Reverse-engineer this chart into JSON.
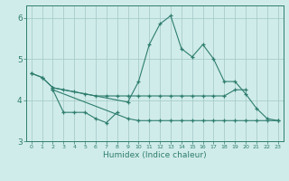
{
  "x": [
    0,
    1,
    2,
    3,
    4,
    5,
    6,
    7,
    8,
    9,
    10,
    11,
    12,
    13,
    14,
    15,
    16,
    17,
    18,
    19,
    20,
    21,
    22,
    23
  ],
  "line1": [
    4.65,
    4.55,
    4.3,
    null,
    null,
    null,
    null,
    null,
    null,
    3.95,
    4.45,
    5.35,
    5.85,
    6.05,
    5.25,
    5.05,
    5.35,
    5.0,
    4.45,
    4.45,
    4.15,
    3.8,
    3.55,
    3.5
  ],
  "line2": [
    null,
    null,
    4.25,
    3.7,
    3.7,
    3.7,
    3.55,
    3.45,
    3.7,
    null,
    null,
    null,
    null,
    null,
    null,
    null,
    null,
    null,
    null,
    null,
    null,
    null,
    null,
    null
  ],
  "line3": [
    null,
    null,
    4.25,
    null,
    null,
    null,
    null,
    null,
    null,
    3.55,
    3.5,
    3.5,
    3.5,
    3.5,
    3.5,
    3.5,
    3.5,
    3.5,
    3.5,
    3.5,
    3.5,
    3.5,
    3.5,
    3.5
  ],
  "line4": [
    4.65,
    4.55,
    4.3,
    4.25,
    4.2,
    4.15,
    4.1,
    4.1,
    4.1,
    4.1,
    4.1,
    4.1,
    4.1,
    4.1,
    4.1,
    4.1,
    4.1,
    4.1,
    4.1,
    4.25,
    4.25,
    null,
    null,
    null
  ],
  "line_color": "#2e7d6e",
  "bg_color": "#d0ecea",
  "grid_color": "#a0c8c4",
  "xlabel": "Humidex (Indice chaleur)",
  "ylim": [
    3.0,
    6.3
  ],
  "xlim": [
    -0.5,
    23.5
  ],
  "yticks": [
    3,
    4,
    5,
    6
  ],
  "xticks": [
    0,
    1,
    2,
    3,
    4,
    5,
    6,
    7,
    8,
    9,
    10,
    11,
    12,
    13,
    14,
    15,
    16,
    17,
    18,
    19,
    20,
    21,
    22,
    23
  ],
  "xticklabels": [
    "0",
    "1",
    "2",
    "3",
    "4",
    "5",
    "6",
    "7",
    "8",
    "9",
    "10",
    "11",
    "12",
    "13",
    "14",
    "15",
    "16",
    "17",
    "18",
    "19",
    "20",
    "21",
    "22",
    "23"
  ]
}
